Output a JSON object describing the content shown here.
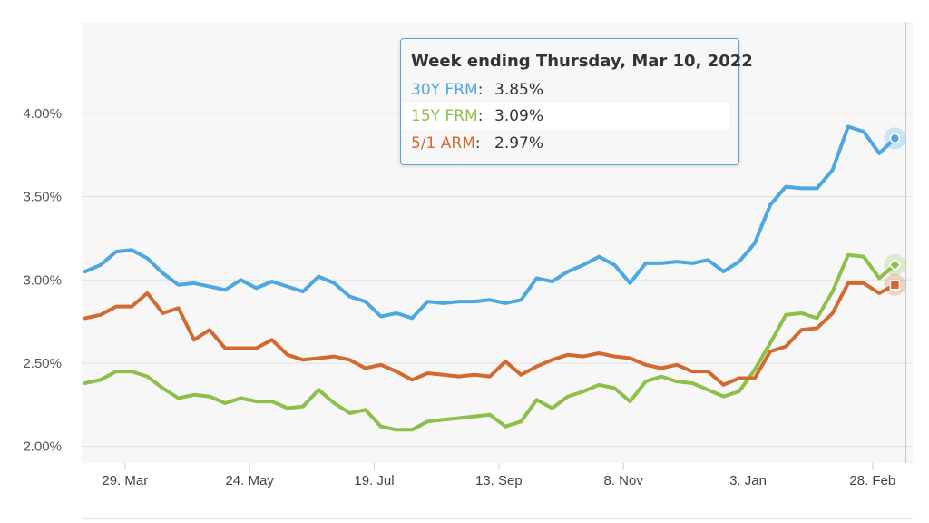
{
  "chart_data": {
    "type": "line",
    "y_ticks": [
      "4.00%",
      "3.50%",
      "3.00%",
      "2.50%",
      "2.00%"
    ],
    "ylim": [
      1.9,
      4.55
    ],
    "grid": true,
    "x_ticks": [
      "29. Mar",
      "24. May",
      "19. Jul",
      "13. Sep",
      "8. Nov",
      "3. Jan",
      "28. Feb"
    ],
    "x_start": "2021-03-11",
    "x_end": "2022-03-10",
    "x_tick_dates": [
      "2021-03-29",
      "2021-05-24",
      "2021-07-19",
      "2021-09-13",
      "2021-11-08",
      "2022-01-03",
      "2022-02-28"
    ],
    "crosshair_date": "2022-03-10",
    "series": [
      {
        "name": "30Y FRM",
        "color": "#4da7e0",
        "marker": "circle",
        "values": [
          3.05,
          3.09,
          3.17,
          3.18,
          3.13,
          3.04,
          2.97,
          2.98,
          2.96,
          2.94,
          3.0,
          2.95,
          2.99,
          2.96,
          2.93,
          3.02,
          2.98,
          2.9,
          2.87,
          2.78,
          2.8,
          2.77,
          2.87,
          2.86,
          2.87,
          2.87,
          2.88,
          2.86,
          2.88,
          3.01,
          2.99,
          3.05,
          3.09,
          3.14,
          3.09,
          2.98,
          3.1,
          3.1,
          3.11,
          3.1,
          3.12,
          3.05,
          3.11,
          3.22,
          3.45,
          3.56,
          3.55,
          3.55,
          3.66,
          3.92,
          3.89,
          3.76,
          3.85
        ]
      },
      {
        "name": "15Y FRM",
        "color": "#8dbf4a",
        "marker": "diamond",
        "values": [
          2.38,
          2.4,
          2.45,
          2.45,
          2.42,
          2.35,
          2.29,
          2.31,
          2.3,
          2.26,
          2.29,
          2.27,
          2.27,
          2.23,
          2.24,
          2.34,
          2.26,
          2.2,
          2.22,
          2.12,
          2.1,
          2.1,
          2.15,
          2.16,
          2.17,
          2.18,
          2.19,
          2.12,
          2.15,
          2.28,
          2.23,
          2.3,
          2.33,
          2.37,
          2.35,
          2.27,
          2.39,
          2.42,
          2.39,
          2.38,
          2.34,
          2.3,
          2.33,
          2.46,
          2.62,
          2.79,
          2.8,
          2.77,
          2.93,
          3.15,
          3.14,
          3.01,
          3.09
        ]
      },
      {
        "name": "5/1 ARM",
        "color": "#d2692f",
        "marker": "square",
        "values": [
          2.77,
          2.79,
          2.84,
          2.84,
          2.92,
          2.8,
          2.83,
          2.64,
          2.7,
          2.59,
          2.59,
          2.59,
          2.64,
          2.55,
          2.52,
          2.53,
          2.54,
          2.52,
          2.47,
          2.49,
          2.45,
          2.4,
          2.44,
          2.43,
          2.42,
          2.43,
          2.42,
          2.51,
          2.43,
          2.48,
          2.52,
          2.55,
          2.54,
          2.56,
          2.54,
          2.53,
          2.49,
          2.47,
          2.49,
          2.45,
          2.45,
          2.37,
          2.41,
          2.41,
          2.57,
          2.6,
          2.7,
          2.71,
          2.8,
          2.98,
          2.98,
          2.92,
          2.97
        ]
      }
    ]
  },
  "tooltip": {
    "title": "Week ending Thursday, Mar 10, 2022",
    "rows": [
      {
        "name": "30Y FRM",
        "value": "3.85%",
        "color": "#4da7e0"
      },
      {
        "name": "15Y FRM",
        "value": "3.09%",
        "color": "#8dbf4a"
      },
      {
        "name": "5/1 ARM",
        "value": "2.97%",
        "color": "#d2692f"
      }
    ]
  }
}
